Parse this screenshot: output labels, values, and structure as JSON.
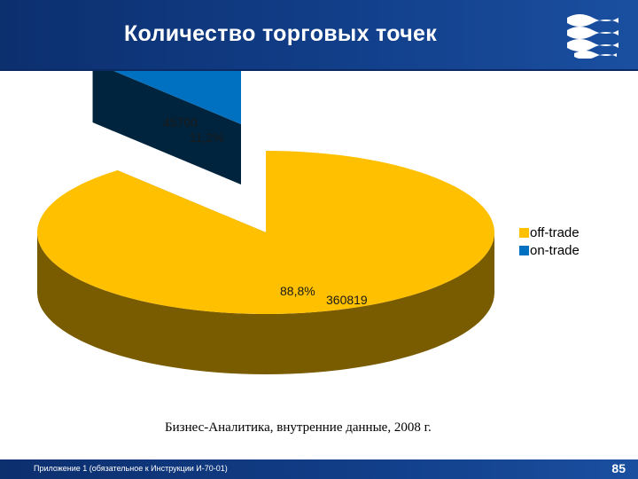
{
  "header": {
    "title": "Количество торговых точек",
    "logo": "wave-logo-icon"
  },
  "chart_data": {
    "type": "pie",
    "style": "3d-exploded",
    "slices": [
      {
        "name": "off-trade",
        "value": 360819,
        "percent": "88,8%",
        "color": "#FFC000",
        "value_label": "360819"
      },
      {
        "name": "on-trade",
        "value": 45700,
        "percent": "11,2%",
        "color": "#0070C0",
        "value_label": "45700"
      }
    ],
    "legend": {
      "position": "right",
      "items": [
        "off-trade",
        "on-trade"
      ]
    }
  },
  "source_note": "Бизнес-Аналитика, внутренние данные, 2008 г.",
  "footer": {
    "note": "Приложение 1 (обязательное к Инструкции И-70-01)",
    "page_number": "85"
  }
}
